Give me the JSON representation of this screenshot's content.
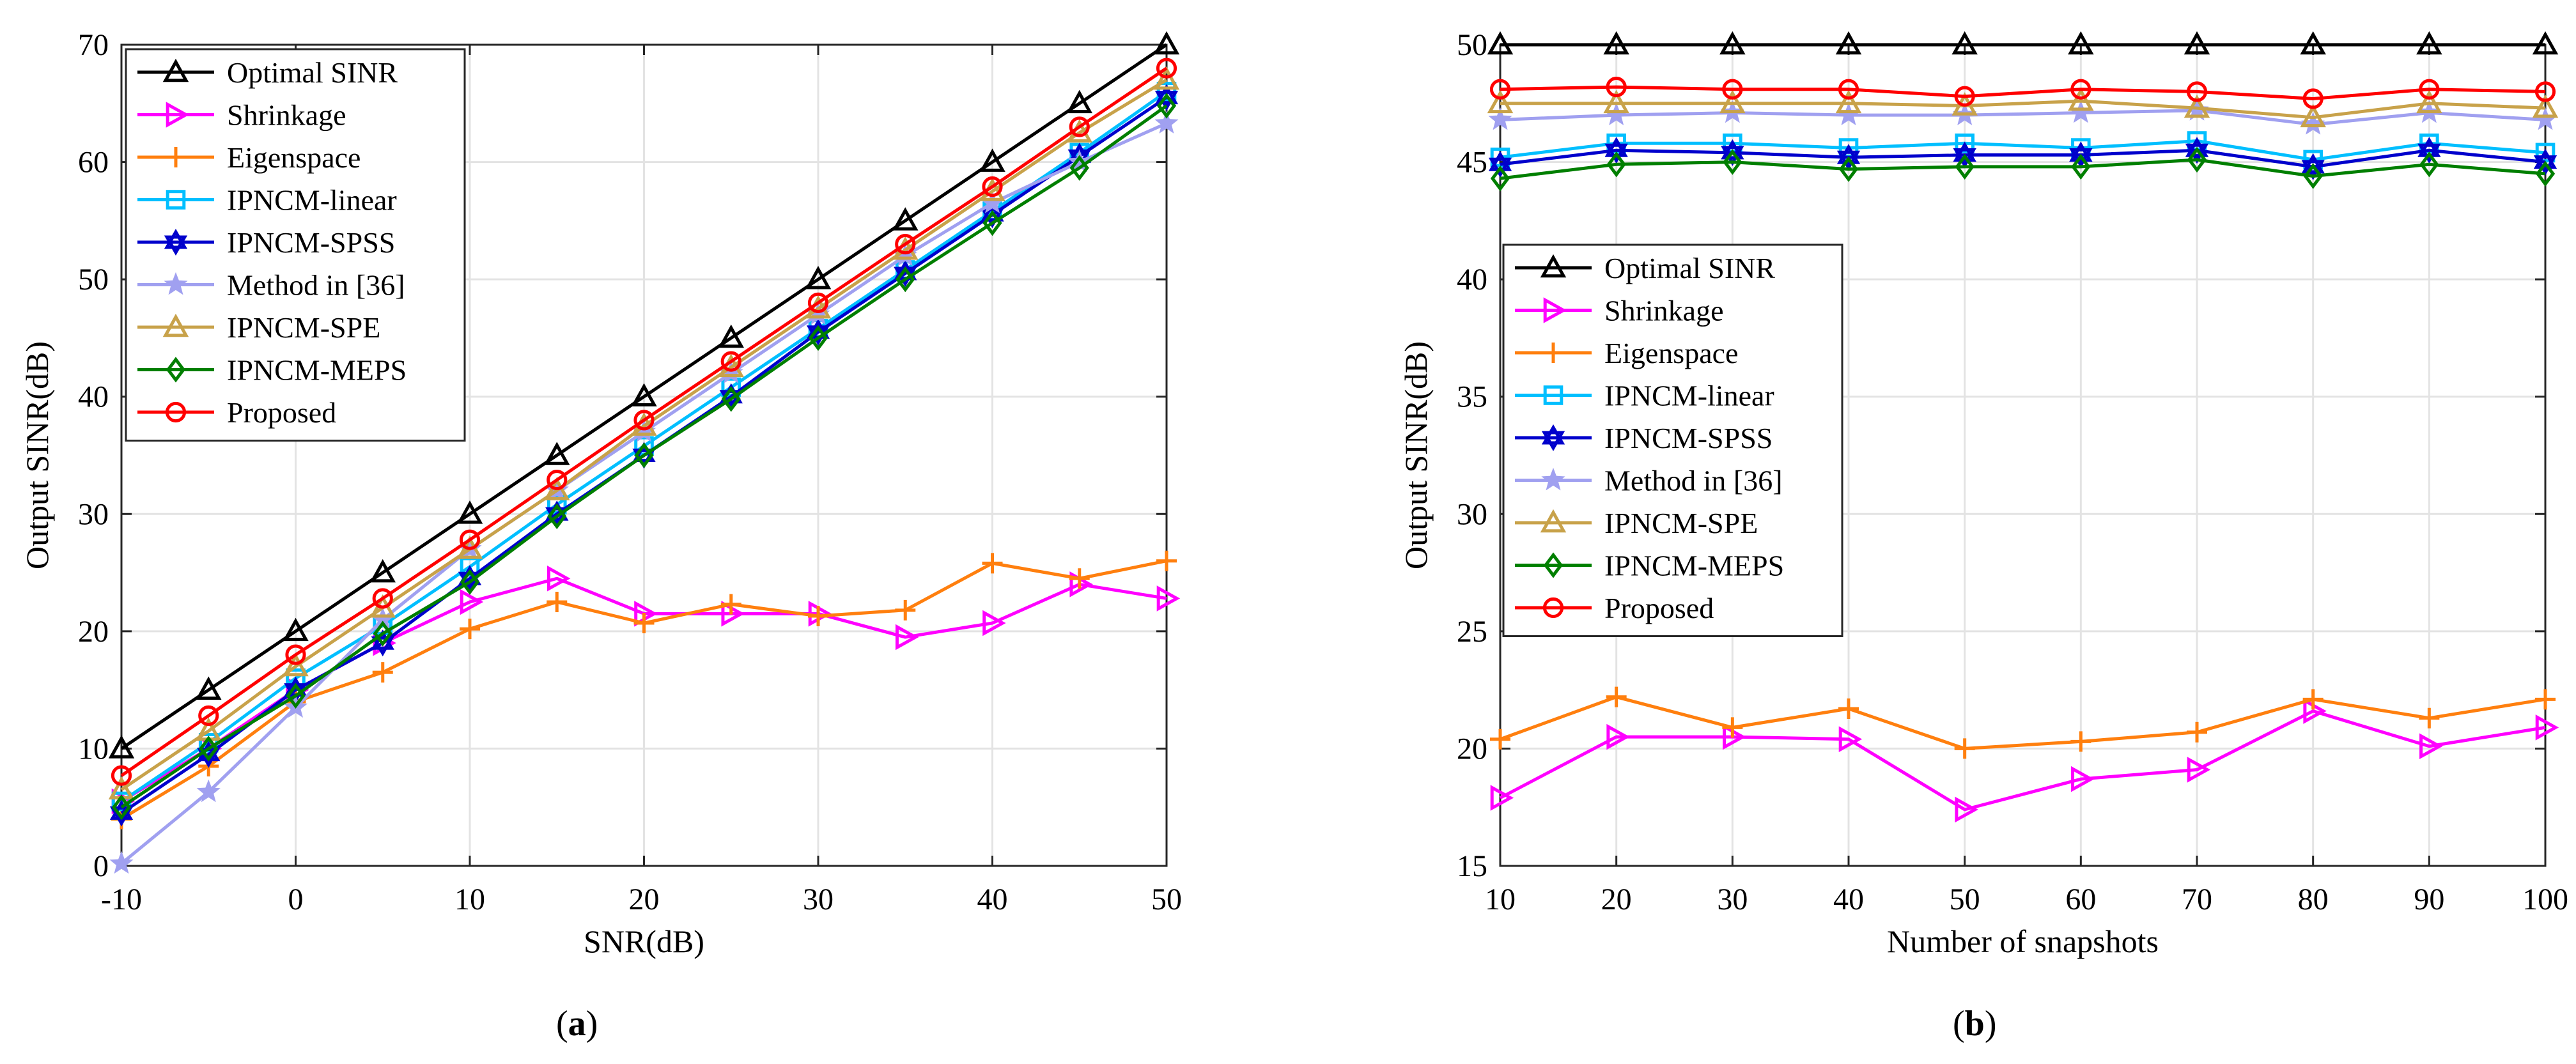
{
  "figure": {
    "panel_a_label": "a",
    "panel_b_label": "b"
  },
  "chart_data": [
    {
      "type": "line",
      "panel": "a",
      "title": "",
      "xlabel": "SNR(dB)",
      "ylabel": "Output SINR(dB)",
      "xlim": [
        -10,
        50
      ],
      "ylim": [
        0,
        70
      ],
      "xticks": [
        -10,
        0,
        10,
        20,
        30,
        40,
        50
      ],
      "yticks": [
        0,
        10,
        20,
        30,
        40,
        50,
        60,
        70
      ],
      "grid": true,
      "legend_position": "top-left",
      "x": [
        -10,
        -5,
        0,
        5,
        10,
        15,
        20,
        25,
        30,
        35,
        40,
        45,
        50
      ],
      "series": [
        {
          "name": "Optimal SINR",
          "color": "#000000",
          "marker": "triangle-up",
          "values": [
            10,
            15,
            20,
            25,
            30,
            35,
            40,
            45,
            50,
            55,
            60,
            65,
            70
          ]
        },
        {
          "name": "Shrinkage",
          "color": "#ff00ff",
          "marker": "triangle-right",
          "values": [
            5.5,
            10,
            15,
            19,
            22.5,
            24.5,
            21.5,
            21.5,
            21.5,
            19.5,
            20.7,
            24,
            22.8
          ]
        },
        {
          "name": "Eigenspace",
          "color": "#ff7f0e",
          "marker": "plus",
          "values": [
            4,
            8.5,
            14,
            16.5,
            20.2,
            22.5,
            20.7,
            22.3,
            21.3,
            21.8,
            25.8,
            24.5,
            26
          ]
        },
        {
          "name": "IPNCM-linear",
          "color": "#00bfff",
          "marker": "square",
          "values": [
            5.5,
            10.5,
            16,
            20.5,
            25.5,
            30.8,
            35.8,
            40.8,
            45.8,
            50.8,
            55.8,
            60.8,
            66
          ]
        },
        {
          "name": "IPNCM-SPSS",
          "color": "#0000cc",
          "marker": "hexagram",
          "values": [
            4.5,
            9.5,
            15,
            19,
            24.5,
            30,
            35,
            40,
            45.5,
            50.5,
            55.5,
            60.5,
            65.5
          ]
        },
        {
          "name": "Method in [36]",
          "color": "#a0a0f0",
          "marker": "star",
          "values": [
            0.2,
            6.3,
            13.5,
            21,
            27,
            32,
            37,
            42,
            47,
            52,
            56.5,
            60,
            63.3
          ]
        },
        {
          "name": "IPNCM-SPE",
          "color": "#c8a24a",
          "marker": "triangle-up",
          "values": [
            6.5,
            11.5,
            17,
            22,
            27,
            32,
            37.5,
            42.5,
            47.5,
            52.5,
            57.5,
            62.5,
            67
          ]
        },
        {
          "name": "IPNCM-MEPS",
          "color": "#007f00",
          "marker": "diamond",
          "values": [
            5,
            10,
            14.5,
            19.8,
            24.2,
            29.8,
            35,
            39.8,
            45,
            50,
            54.8,
            59.5,
            64.8
          ]
        },
        {
          "name": "Proposed",
          "color": "#ff0000",
          "marker": "circle",
          "values": [
            7.7,
            12.8,
            18,
            22.8,
            27.8,
            32.9,
            38,
            43,
            48,
            53,
            57.9,
            63,
            68
          ]
        }
      ]
    },
    {
      "type": "line",
      "panel": "b",
      "title": "",
      "xlabel": "Number of snapshots",
      "ylabel": "Output SINR(dB)",
      "xlim": [
        10,
        100
      ],
      "ylim": [
        15,
        50
      ],
      "xticks": [
        10,
        20,
        30,
        40,
        50,
        60,
        70,
        80,
        90,
        100
      ],
      "yticks": [
        15,
        20,
        25,
        30,
        35,
        40,
        45,
        50
      ],
      "grid": true,
      "legend_position": "middle-left",
      "x": [
        10,
        20,
        30,
        40,
        50,
        60,
        70,
        80,
        90,
        100
      ],
      "series": [
        {
          "name": "Optimal SINR",
          "color": "#000000",
          "marker": "triangle-up",
          "values": [
            50,
            50,
            50,
            50,
            50,
            50,
            50,
            50,
            50,
            50
          ]
        },
        {
          "name": "Shrinkage",
          "color": "#ff00ff",
          "marker": "triangle-right",
          "values": [
            17.9,
            20.5,
            20.5,
            20.4,
            17.4,
            18.7,
            19.1,
            21.6,
            20.1,
            20.9
          ]
        },
        {
          "name": "Eigenspace",
          "color": "#ff7f0e",
          "marker": "plus",
          "values": [
            20.4,
            22.2,
            20.9,
            21.7,
            20.0,
            20.3,
            20.7,
            22.1,
            21.3,
            22.1
          ]
        },
        {
          "name": "IPNCM-linear",
          "color": "#00bfff",
          "marker": "square",
          "values": [
            45.2,
            45.8,
            45.8,
            45.6,
            45.8,
            45.6,
            45.9,
            45.1,
            45.8,
            45.4
          ]
        },
        {
          "name": "IPNCM-SPSS",
          "color": "#0000cc",
          "marker": "hexagram",
          "values": [
            44.9,
            45.5,
            45.4,
            45.2,
            45.3,
            45.3,
            45.5,
            44.8,
            45.5,
            45.0
          ]
        },
        {
          "name": "Method in [36]",
          "color": "#a0a0f0",
          "marker": "star",
          "values": [
            46.8,
            47.0,
            47.1,
            47.0,
            47.0,
            47.1,
            47.2,
            46.6,
            47.1,
            46.8
          ]
        },
        {
          "name": "IPNCM-SPE",
          "color": "#c8a24a",
          "marker": "triangle-up",
          "values": [
            47.5,
            47.5,
            47.5,
            47.5,
            47.4,
            47.6,
            47.3,
            46.9,
            47.5,
            47.3
          ]
        },
        {
          "name": "IPNCM-MEPS",
          "color": "#007f00",
          "marker": "diamond",
          "values": [
            44.3,
            44.9,
            45.0,
            44.7,
            44.8,
            44.8,
            45.1,
            44.4,
            44.9,
            44.5
          ]
        },
        {
          "name": "Proposed",
          "color": "#ff0000",
          "marker": "circle",
          "values": [
            48.1,
            48.2,
            48.1,
            48.1,
            47.8,
            48.1,
            48.0,
            47.7,
            48.1,
            48.0
          ]
        }
      ]
    }
  ]
}
